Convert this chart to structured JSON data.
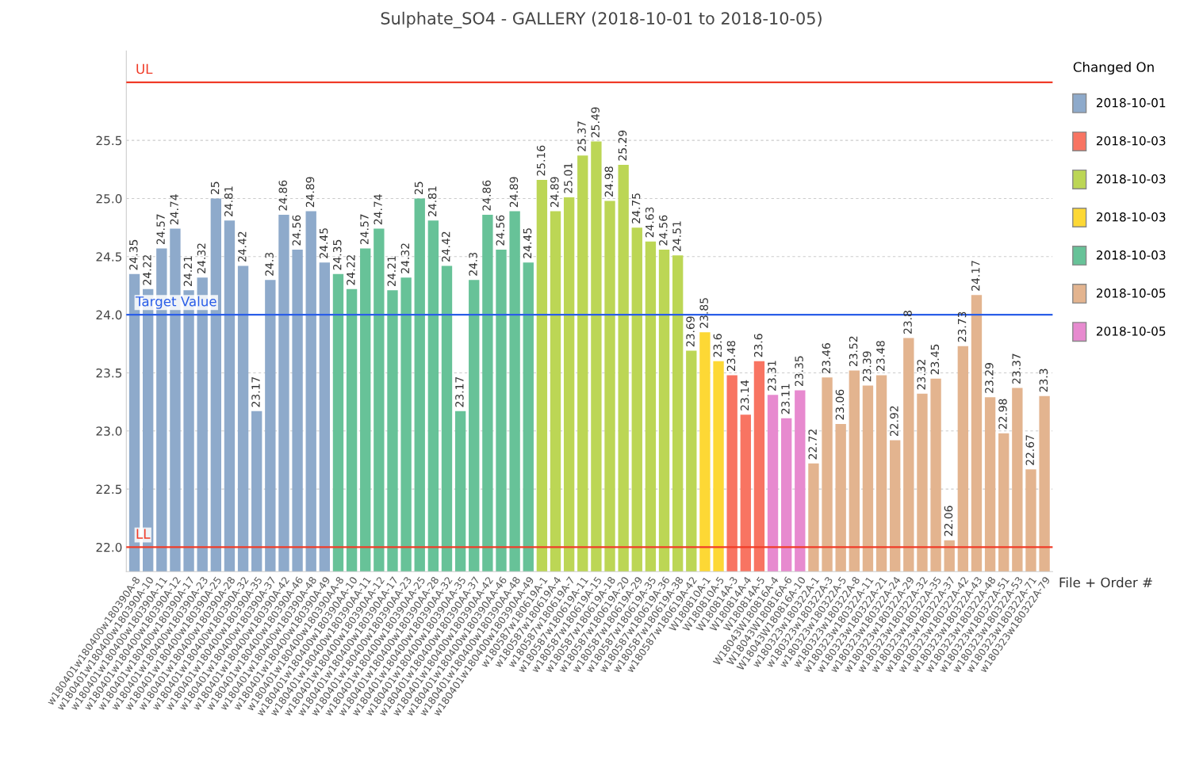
{
  "chart_data": {
    "type": "bar",
    "title": "Sulphate_SO4 - GALLERY (2018-10-01 to 2018-10-05)",
    "xlabel": "File + Order #",
    "legend_title": "Changed On",
    "categories": [
      "w180401w180400w180390A-8",
      "w180401w180400w180390A-10",
      "w180401w180400w180390A-11",
      "w180401w180400w180390A-12",
      "w180401w180400w180390A-17",
      "w180401w180400w180390A-23",
      "w180401w180400w180390A-25",
      "w180401w180400w180390A-28",
      "w180401w180400w180390A-32",
      "w180401w180400w180390A-35",
      "w180401w180400w180390A-37",
      "w180401w180400w180390A-42",
      "w180401w180400w180390A-46",
      "w180401w180400w180390A-48",
      "w180401w180400w180390A-49",
      "w180401w180400w180390AA-8",
      "w180401w180400w180390AA-10",
      "w180401w180400w180390AA-11",
      "w180401w180400w180390AA-12",
      "w180401w180400w180390AA-17",
      "w180401w180400w180390AA-23",
      "w180401w180400w180390AA-25",
      "w180401w180400w180390AA-28",
      "w180401w180400w180390AA-32",
      "w180401w180400w180390AA-35",
      "w180401w180400w180390AA-37",
      "w180401w180400w180390AA-42",
      "w180401w180400w180390AA-46",
      "w180401w180400w180390AA-48",
      "w180401w180400w180390AA-49",
      "w180587w180619A-1",
      "w180587w180619A-4",
      "w180587w180619A-7",
      "w180587w180619A-11",
      "w180587w180619A-15",
      "w180587w180619A-18",
      "w180587w180619A-20",
      "w180587w180619A-29",
      "w180587w180619A-35",
      "w180587w180619A-36",
      "w180587w180619A-38",
      "w180587w180619A-42",
      "W180810A-1",
      "W180810A-5",
      "W180814A-3",
      "W180814A-4",
      "W180814A-5",
      "W18043W180816A-4",
      "W18043W180816A-6",
      "W18043W180816A-10",
      "w180323w180322A-1",
      "w180323w180322A-3",
      "w180323w180322A-5",
      "w180323w180322A-8",
      "w180323w180322A-11",
      "w180323w180322A-21",
      "w180323w180322A-24",
      "w180323w180322A-29",
      "w180323w180322A-32",
      "w180323w180322A-35",
      "w180323w180322A-37",
      "w180323w180322A-42",
      "w180323w180322A-43",
      "w180323w180322A-48",
      "w180323w180322A-51",
      "w180323w180322A-53",
      "w180323w180322A-71",
      "w180323w180322A-79"
    ],
    "series": [
      {
        "name": "2018-10-01",
        "color": "#8eaacb",
        "values": [
          24.35,
          24.22,
          24.57,
          24.74,
          24.21,
          24.32,
          25,
          24.81,
          24.42,
          23.17,
          24.3,
          24.86,
          24.56,
          24.89,
          24.45,
          null,
          null,
          null,
          null,
          null,
          null,
          null,
          null,
          null,
          null,
          null,
          null,
          null,
          null,
          null,
          null,
          null,
          null,
          null,
          null,
          null,
          null,
          null,
          null,
          null,
          null,
          null,
          null,
          null,
          null,
          null,
          null,
          null,
          null,
          null,
          null,
          null,
          null,
          null,
          null,
          null,
          null,
          null,
          null,
          null,
          null,
          null,
          null,
          null,
          null,
          null,
          null,
          null
        ]
      },
      {
        "name": "2018-10-03",
        "color": "#f87462",
        "values": [
          null,
          null,
          null,
          null,
          null,
          null,
          null,
          null,
          null,
          null,
          null,
          null,
          null,
          null,
          null,
          null,
          null,
          null,
          null,
          null,
          null,
          null,
          null,
          null,
          null,
          null,
          null,
          null,
          null,
          null,
          null,
          null,
          null,
          null,
          null,
          null,
          null,
          null,
          null,
          null,
          null,
          null,
          null,
          null,
          23.48,
          23.14,
          23.6,
          null,
          null,
          null,
          null,
          null,
          null,
          null,
          null,
          null,
          null,
          null,
          null,
          null,
          null,
          null,
          null,
          null,
          null,
          null,
          null,
          null
        ]
      },
      {
        "name": "2018-10-03",
        "color": "#bcd655",
        "values": [
          null,
          null,
          null,
          null,
          null,
          null,
          null,
          null,
          null,
          null,
          null,
          null,
          null,
          null,
          null,
          null,
          null,
          null,
          null,
          null,
          null,
          null,
          null,
          null,
          null,
          null,
          null,
          null,
          null,
          null,
          25.16,
          24.89,
          25.01,
          25.37,
          25.49,
          24.98,
          25.29,
          24.75,
          24.63,
          24.56,
          24.51,
          23.69,
          null,
          null,
          null,
          null,
          null,
          null,
          null,
          null,
          null,
          null,
          null,
          null,
          null,
          null,
          null,
          null,
          null,
          null,
          null,
          null,
          null,
          null,
          null,
          null,
          null,
          null
        ]
      },
      {
        "name": "2018-10-03",
        "color": "#fdd835",
        "values": [
          null,
          null,
          null,
          null,
          null,
          null,
          null,
          null,
          null,
          null,
          null,
          null,
          null,
          null,
          null,
          null,
          null,
          null,
          null,
          null,
          null,
          null,
          null,
          null,
          null,
          null,
          null,
          null,
          null,
          null,
          null,
          null,
          null,
          null,
          null,
          null,
          null,
          null,
          null,
          null,
          null,
          null,
          23.85,
          23.6,
          null,
          null,
          null,
          null,
          null,
          null,
          null,
          null,
          null,
          null,
          null,
          null,
          null,
          null,
          null,
          null,
          null,
          null,
          null,
          null,
          null,
          null,
          null,
          null
        ]
      },
      {
        "name": "2018-10-03",
        "color": "#67c298",
        "values": [
          null,
          null,
          null,
          null,
          null,
          null,
          null,
          null,
          null,
          null,
          null,
          null,
          null,
          null,
          null,
          24.35,
          24.22,
          24.57,
          24.74,
          24.21,
          24.32,
          25,
          24.81,
          24.42,
          23.17,
          24.3,
          24.86,
          24.56,
          24.89,
          24.45,
          null,
          null,
          null,
          null,
          null,
          null,
          null,
          null,
          null,
          null,
          null,
          null,
          null,
          null,
          null,
          null,
          null,
          null,
          null,
          null,
          null,
          null,
          null,
          null,
          null,
          null,
          null,
          null,
          null,
          null,
          null,
          null,
          null,
          null,
          null,
          null,
          null,
          null
        ]
      },
      {
        "name": "2018-10-05",
        "color": "#e3b48f",
        "values": [
          null,
          null,
          null,
          null,
          null,
          null,
          null,
          null,
          null,
          null,
          null,
          null,
          null,
          null,
          null,
          null,
          null,
          null,
          null,
          null,
          null,
          null,
          null,
          null,
          null,
          null,
          null,
          null,
          null,
          null,
          null,
          null,
          null,
          null,
          null,
          null,
          null,
          null,
          null,
          null,
          null,
          null,
          null,
          null,
          null,
          null,
          null,
          null,
          null,
          null,
          22.72,
          23.46,
          23.06,
          23.52,
          23.39,
          23.48,
          22.92,
          23.8,
          23.32,
          23.45,
          22.06,
          23.73,
          24.17,
          23.29,
          22.98,
          23.37,
          22.67,
          23.3
        ]
      },
      {
        "name": "2018-10-05",
        "color": "#e78acf",
        "values": [
          null,
          null,
          null,
          null,
          null,
          null,
          null,
          null,
          null,
          null,
          null,
          null,
          null,
          null,
          null,
          null,
          null,
          null,
          null,
          null,
          null,
          null,
          null,
          null,
          null,
          null,
          null,
          null,
          null,
          null,
          null,
          null,
          null,
          null,
          null,
          null,
          null,
          null,
          null,
          null,
          null,
          null,
          null,
          null,
          null,
          null,
          null,
          23.31,
          23.11,
          23.35,
          null,
          null,
          null,
          null,
          null,
          null,
          null,
          null,
          null,
          null,
          null,
          null,
          null,
          null,
          null,
          null,
          null,
          null
        ]
      }
    ],
    "ylim": [
      21.79,
      26.27
    ],
    "yticks": [
      {
        "value": 22,
        "label": "22.0"
      },
      {
        "value": 22.5,
        "label": "22.5"
      },
      {
        "value": 23,
        "label": "23.0"
      },
      {
        "value": 23.5,
        "label": "23.5"
      },
      {
        "value": 24,
        "label": "24.0"
      },
      {
        "value": 24.5,
        "label": "24.5"
      },
      {
        "value": 25,
        "label": "25.0"
      },
      {
        "value": 25.5,
        "label": "25.5"
      }
    ],
    "ref_lines": [
      {
        "axis": "y",
        "value": 26.0,
        "label": "UL",
        "color": "#f03c28"
      },
      {
        "axis": "y",
        "value": 24.0,
        "label": "Target Value",
        "color": "#2a5ee8"
      },
      {
        "axis": "y",
        "value": 22.0,
        "label": "LL",
        "color": "#f03c28"
      }
    ],
    "data_labels": true,
    "grid": "y",
    "legend": "right"
  }
}
